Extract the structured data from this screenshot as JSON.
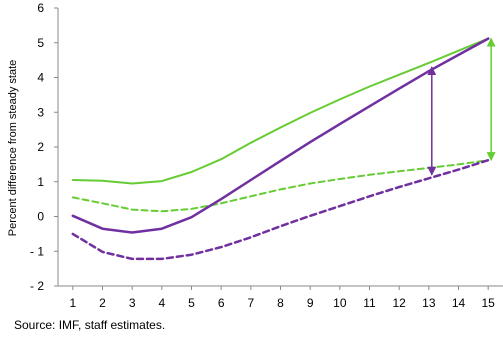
{
  "chart_data": {
    "type": "line",
    "ylabel": "Percent difference from steady state",
    "x": [
      1,
      2,
      3,
      4,
      5,
      6,
      7,
      8,
      9,
      10,
      11,
      12,
      13,
      14,
      15
    ],
    "xlim": [
      0.5,
      15.5
    ],
    "ylim": [
      -2,
      6
    ],
    "x_ticks": [
      1,
      2,
      3,
      4,
      5,
      6,
      7,
      8,
      9,
      10,
      11,
      12,
      13,
      14,
      15
    ],
    "y_ticks": [
      -2,
      -1,
      0,
      1,
      2,
      3,
      4,
      5,
      6
    ],
    "grid": false,
    "series": [
      {
        "color": "#66CC33",
        "dash": "solid",
        "values": [
          1.05,
          1.03,
          0.95,
          1.02,
          1.28,
          1.65,
          2.12,
          2.56,
          2.98,
          3.37,
          3.74,
          4.08,
          4.42,
          4.77,
          5.12
        ]
      },
      {
        "color": "#66CC33",
        "dash": "dashed",
        "values": [
          0.55,
          0.38,
          0.2,
          0.15,
          0.22,
          0.38,
          0.58,
          0.78,
          0.95,
          1.08,
          1.2,
          1.3,
          1.4,
          1.5,
          1.62
        ]
      },
      {
        "color": "#7030A0",
        "dash": "solid",
        "values": [
          0.02,
          -0.35,
          -0.46,
          -0.35,
          -0.02,
          0.5,
          1.05,
          1.6,
          2.14,
          2.66,
          3.17,
          3.68,
          4.18,
          4.65,
          5.12
        ]
      },
      {
        "color": "#7030A0",
        "dash": "dashed",
        "values": [
          -0.5,
          -1.02,
          -1.22,
          -1.22,
          -1.1,
          -0.88,
          -0.6,
          -0.28,
          0.02,
          0.3,
          0.58,
          0.85,
          1.1,
          1.35,
          1.62
        ]
      }
    ],
    "annotations": [
      {
        "type": "double-arrow",
        "color": "#7030A0",
        "x": 13.1,
        "y_from": 1.2,
        "y_to": 4.3
      },
      {
        "type": "double-arrow",
        "color": "#66CC33",
        "x": 15.1,
        "y_from": 1.62,
        "y_to": 5.12
      }
    ]
  },
  "source_note": "Source: IMF, staff estimates."
}
